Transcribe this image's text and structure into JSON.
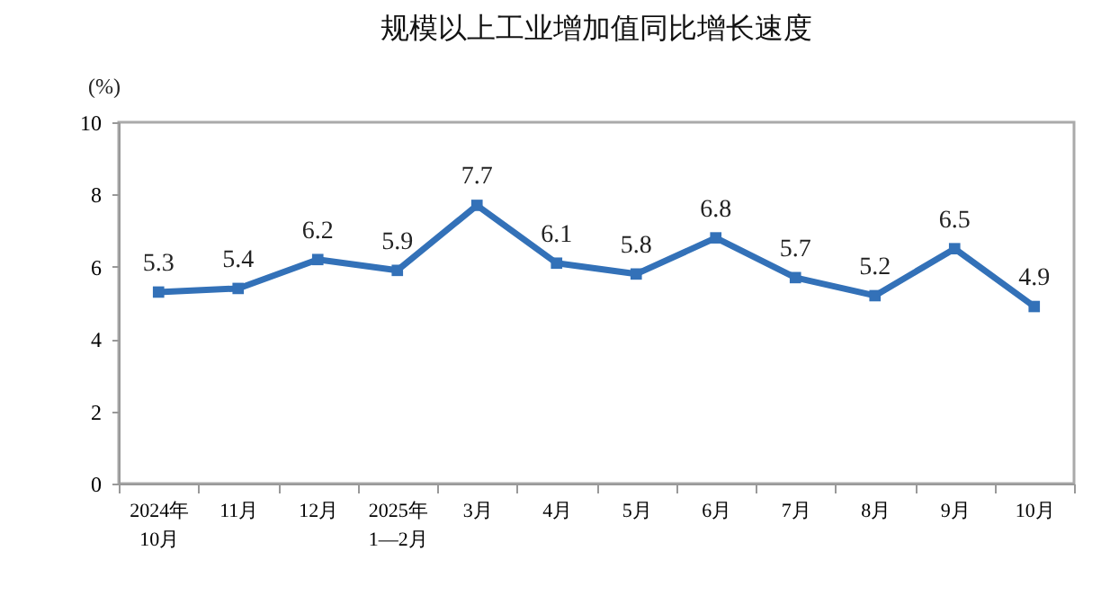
{
  "chart_data": {
    "type": "line",
    "title": "规模以上工业增加值同比增长速度",
    "ylabel": "(%)",
    "categories": [
      "2024年\n10月",
      "11月",
      "12月",
      "2025年\n1—2月",
      "3月",
      "4月",
      "5月",
      "6月",
      "7月",
      "8月",
      "9月",
      "10月"
    ],
    "series": [
      {
        "color": "#3371b8",
        "values": [
          5.3,
          5.4,
          6.2,
          5.9,
          7.7,
          6.1,
          5.8,
          6.8,
          5.7,
          5.2,
          6.5,
          4.9
        ]
      }
    ],
    "ylim": [
      0,
      10
    ],
    "yticks": [
      0,
      2,
      4,
      6,
      8,
      10
    ],
    "grid": false,
    "legend": false,
    "marker": "square",
    "line_style": "solid",
    "data_labels": true
  }
}
